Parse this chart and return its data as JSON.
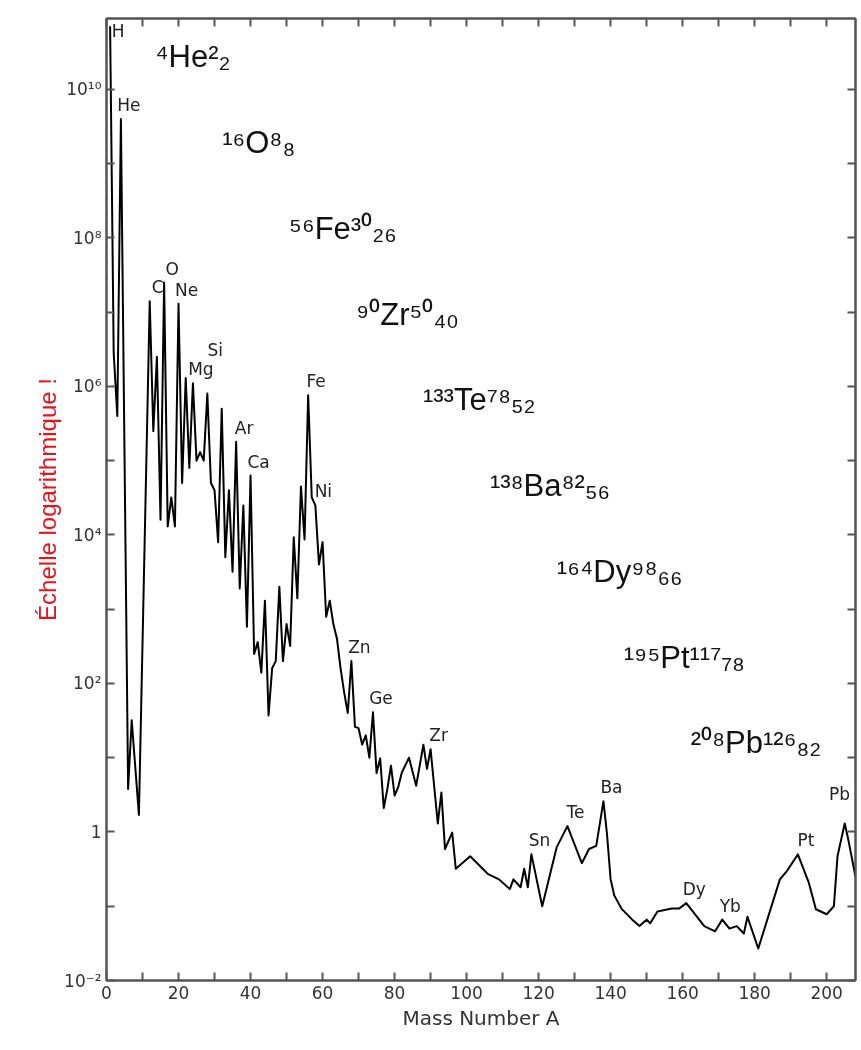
{
  "chart_data": {
    "type": "line",
    "xlabel": "Mass Number A",
    "ylabel": "Échelle logarithmique !",
    "log": "y",
    "grid": false,
    "xlim": [
      0,
      208
    ],
    "ylim": [
      0.01,
      90000000000.0
    ],
    "xticks": [
      0,
      {
        "value": 10,
        "label": null
      },
      20,
      {
        "value": 30,
        "label": null
      },
      40,
      {
        "value": 50,
        "label": null
      },
      60,
      {
        "value": 70,
        "label": null
      },
      80,
      {
        "value": 90,
        "label": null
      },
      100,
      {
        "value": 110,
        "label": null
      },
      120,
      {
        "value": 130,
        "label": null
      },
      140,
      {
        "value": 150,
        "label": null
      },
      160,
      {
        "value": 170,
        "label": null
      },
      180,
      {
        "value": 190,
        "label": null
      },
      200
    ],
    "yticks": [
      {
        "value": 0.01,
        "label": "10⁻²"
      },
      {
        "value": 0.1,
        "label": null
      },
      1,
      {
        "value": 10,
        "label": null
      },
      {
        "value": 100,
        "label": "10²"
      },
      {
        "value": 1000,
        "label": null
      },
      {
        "value": 10000,
        "label": "10⁴"
      },
      {
        "value": 100000,
        "label": null
      },
      {
        "value": 1000000,
        "label": "10⁶"
      },
      {
        "value": 10000000,
        "label": null
      },
      {
        "value": 100000000,
        "label": "10⁸"
      },
      {
        "value": 1000000000,
        "label": null
      },
      {
        "value": 10000000000,
        "label": "10¹⁰"
      }
    ],
    "series": [
      {
        "color": "#000000",
        "x": [
          1,
          2,
          3,
          4,
          6,
          7,
          9,
          12,
          13,
          14,
          15,
          16,
          17,
          18,
          19,
          20,
          21,
          22,
          23,
          24,
          25,
          26,
          27,
          28,
          29,
          30,
          31,
          32,
          33,
          34,
          35,
          36,
          37,
          38,
          39,
          40,
          41,
          42,
          43,
          44,
          45,
          46,
          47,
          48,
          49,
          50,
          51,
          52,
          53,
          54,
          55,
          56,
          57,
          58,
          59,
          60,
          61,
          62,
          63,
          64,
          65,
          66,
          67,
          68,
          69,
          70,
          71,
          72,
          73,
          74,
          75,
          76,
          77,
          78,
          79,
          80,
          81,
          82,
          84,
          86,
          88,
          89,
          90,
          92,
          93,
          94,
          96,
          97,
          101,
          106,
          109,
          112,
          113,
          115,
          116,
          117,
          118,
          121,
          125,
          128,
          132,
          134,
          136,
          138,
          139,
          140,
          141,
          143,
          146,
          148,
          150,
          151,
          153,
          157,
          159,
          161,
          164,
          166,
          169,
          171,
          173,
          175,
          177,
          178,
          181,
          184,
          187,
          189,
          192,
          195,
          197,
          200,
          202,
          203,
          205,
          206,
          208
        ],
        "values": [
          71000000000.0,
          2800000.0,
          400000.0,
          4000000000.0,
          3.8,
          32,
          1.7,
          14000000.0,
          250000.0,
          2500000.0,
          16000.0,
          25000000.0,
          13000.0,
          32000.0,
          13000.0,
          13000000.0,
          50000.0,
          1300000.0,
          80000.0,
          1100000.0,
          100000.0,
          130000.0,
          100000.0,
          800000.0,
          50000.0,
          40000.0,
          8000.0,
          500000.0,
          5000.0,
          40000.0,
          3200.0,
          180000.0,
          1900.0,
          25000.0,
          580,
          63000.0,
          250,
          360,
          140,
          1300.0,
          37,
          160,
          200,
          2000.0,
          200,
          630,
          320,
          9300.0,
          1400.0,
          45000.0,
          8700.0,
          760000.0,
          32000.0,
          25000.0,
          4000.0,
          8000.0,
          790,
          1300.0,
          630,
          400,
          160,
          76,
          40,
          200,
          26,
          25,
          15,
          20,
          10,
          41,
          6.2,
          9.8,
          2.1,
          3.8,
          7.8,
          3.1,
          4,
          6.3,
          10,
          4.2,
          15,
          7.1,
          13,
          1.3,
          3.4,
          0.59,
          0.98,
          0.32,
          0.47,
          0.27,
          0.23,
          0.17,
          0.23,
          0.18,
          0.32,
          0.18,
          0.5,
          0.1,
          0.62,
          1.2,
          0.38,
          0.59,
          0.65,
          2.6,
          0.93,
          0.23,
          0.14,
          0.093,
          0.066,
          0.054,
          0.066,
          0.059,
          0.085,
          0.093,
          0.093,
          0.11,
          0.072,
          0.054,
          0.046,
          0.066,
          0.05,
          0.054,
          0.043,
          0.072,
          0.027,
          0.079,
          0.23,
          0.3,
          0.5,
          0.21,
          0.091,
          0.078,
          0.1,
          0.47,
          1.3,
          0.79,
          0.25
        ]
      }
    ],
    "annotations": [
      {
        "text": "H",
        "x": 1,
        "y": 71000000000.0
      },
      {
        "text": "He",
        "x": 4,
        "y": 4000000000.0
      },
      {
        "text": "C",
        "x": 12,
        "y": 14000000.0
      },
      {
        "text": "O",
        "x": 16,
        "y": 25000000.0
      },
      {
        "text": "Ne",
        "x": 20,
        "y": 13000000.0
      },
      {
        "text": "Mg",
        "x": 24,
        "y": 1100000.0
      },
      {
        "text": "Si",
        "x": 28,
        "y": 800000.0
      },
      {
        "text": "Ar",
        "x": 36,
        "y": 180000.0
      },
      {
        "text": "Ca",
        "x": 40,
        "y": 63000.0
      },
      {
        "text": "Fe",
        "x": 56,
        "y": 760000.0
      },
      {
        "text": "Ni",
        "x": 58,
        "y": 25000.0
      },
      {
        "text": "Zn",
        "x": 68,
        "y": 200
      },
      {
        "text": "Ge",
        "x": 74,
        "y": 41
      },
      {
        "text": "Zr",
        "x": 90,
        "y": 13
      },
      {
        "text": "Sn",
        "x": 118,
        "y": 0.5
      },
      {
        "text": "Te",
        "x": 128,
        "y": 1.2
      },
      {
        "text": "Ba",
        "x": 138,
        "y": 2.6
      },
      {
        "text": "Dy",
        "x": 161,
        "y": 0.11
      },
      {
        "text": "Yb",
        "x": 171,
        "y": 0.066
      },
      {
        "text": "Pt",
        "x": 192,
        "y": 0.5
      },
      {
        "text": "Pb",
        "x": 205,
        "y": 1.3
      },
      "⁴He²₂",
      "¹⁶O⁸₈",
      "⁵⁶Fe³⁰₂₆",
      "⁹⁰Zr⁵⁰₄₀",
      "¹³³Te⁷⁸₅₂",
      "¹³⁸Ba⁸²₅₆",
      "¹⁶⁴Dy⁹⁸₆₆",
      "¹⁹⁵Pt¹¹⁷₇₈",
      "²⁰⁸Pb¹²⁶₈₂"
    ]
  }
}
